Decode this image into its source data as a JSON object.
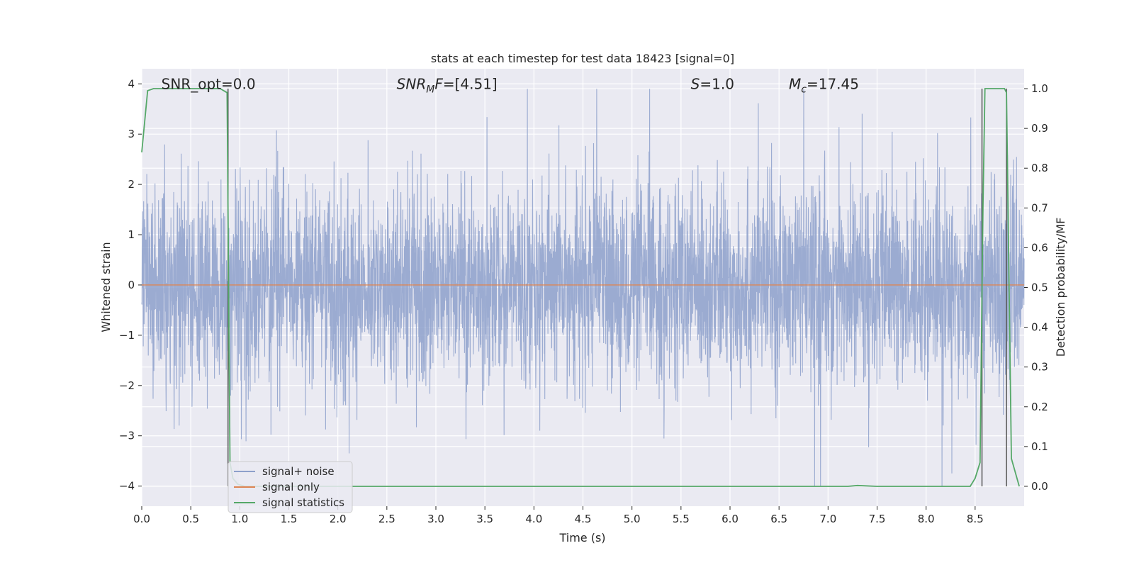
{
  "chart_data": {
    "type": "line",
    "title": "stats at each timestep for test data 18423 [signal=0]",
    "xlabel": "Time (s)",
    "ylabel_left": "Whitened strain",
    "ylabel_right": "Detection probability/MF",
    "xlim": [
      0.0,
      9.0
    ],
    "ylim_left": [
      -4.4,
      4.3
    ],
    "ylim_right": [
      -0.05,
      1.05
    ],
    "x_ticks": [
      "0.0",
      "0.5",
      "1.0",
      "1.5",
      "2.0",
      "2.5",
      "3.0",
      "3.5",
      "4.0",
      "4.5",
      "5.0",
      "5.5",
      "6.0",
      "6.5",
      "7.0",
      "7.5",
      "8.0",
      "8.5"
    ],
    "y_left_ticks": [
      "4",
      "3",
      "2",
      "1",
      "0",
      "−1",
      "−2",
      "−3",
      "−4"
    ],
    "y_right_ticks": [
      "1.0",
      "0.9",
      "0.8",
      "0.7",
      "0.6",
      "0.5",
      "0.4",
      "0.3",
      "0.2",
      "0.1",
      "0.0"
    ],
    "grid": true,
    "legend_position": "lower-left",
    "annotations": [
      {
        "text": "SNR_opt=0.0",
        "x": 0.2,
        "y": 4.0
      },
      {
        "text": "SNR_MF=[4.51]",
        "main": "SNR",
        "sub": "M",
        "rest": "F=[4.51]",
        "x": 2.6,
        "y": 4.0
      },
      {
        "text": "S=1.0",
        "main": "S",
        "rest": "=1.0",
        "x": 5.6,
        "y": 4.0
      },
      {
        "text": "M_c=17.45",
        "main": "M",
        "sub": "c",
        "rest": "=17.45",
        "x": 6.6,
        "y": 4.0
      }
    ],
    "series": [
      {
        "name": "signal+ noise",
        "axis": "left",
        "color": "#8da0cb",
        "description_of_values": "dense whitened noise, mostly within [-1.6, 1.6] with spikes up to about 3.9 and down to about -4.0",
        "envelope": {
          "typical_max": 1.6,
          "typical_min": -1.6,
          "spike_max": 3.9,
          "spike_min": -4.0
        }
      },
      {
        "name": "signal only",
        "axis": "left",
        "color": "#dd8452",
        "x": [
          0.0,
          9.0
        ],
        "y": [
          0.0,
          0.0
        ]
      },
      {
        "name": "signal statistics",
        "axis": "right",
        "color": "#55a868",
        "x": [
          0.0,
          0.06,
          0.12,
          0.5,
          0.8,
          0.87,
          0.9,
          0.93,
          0.98,
          1.05,
          7.2,
          7.3,
          7.5,
          8.45,
          8.5,
          8.55,
          8.58,
          8.6,
          8.65,
          8.7,
          8.8,
          8.82,
          8.87,
          8.95
        ],
        "y": [
          0.84,
          0.995,
          1.0,
          1.0,
          1.0,
          0.99,
          0.06,
          0.02,
          0.005,
          0.0,
          0.0,
          0.002,
          0.0,
          0.0,
          0.02,
          0.06,
          0.7,
          1.0,
          1.0,
          1.0,
          1.0,
          0.99,
          0.07,
          0.0
        ]
      }
    ],
    "vertical_lines": [
      {
        "x": 0.88,
        "from": 0.0,
        "to": 1.0,
        "color": "#555555"
      },
      {
        "x": 8.57,
        "from": 0.0,
        "to": 1.0,
        "color": "#555555"
      },
      {
        "x": 8.82,
        "from": 0.0,
        "to": 1.0,
        "color": "#555555"
      }
    ],
    "colors": {
      "background": "#eaeaf2",
      "grid": "#ffffff"
    }
  }
}
